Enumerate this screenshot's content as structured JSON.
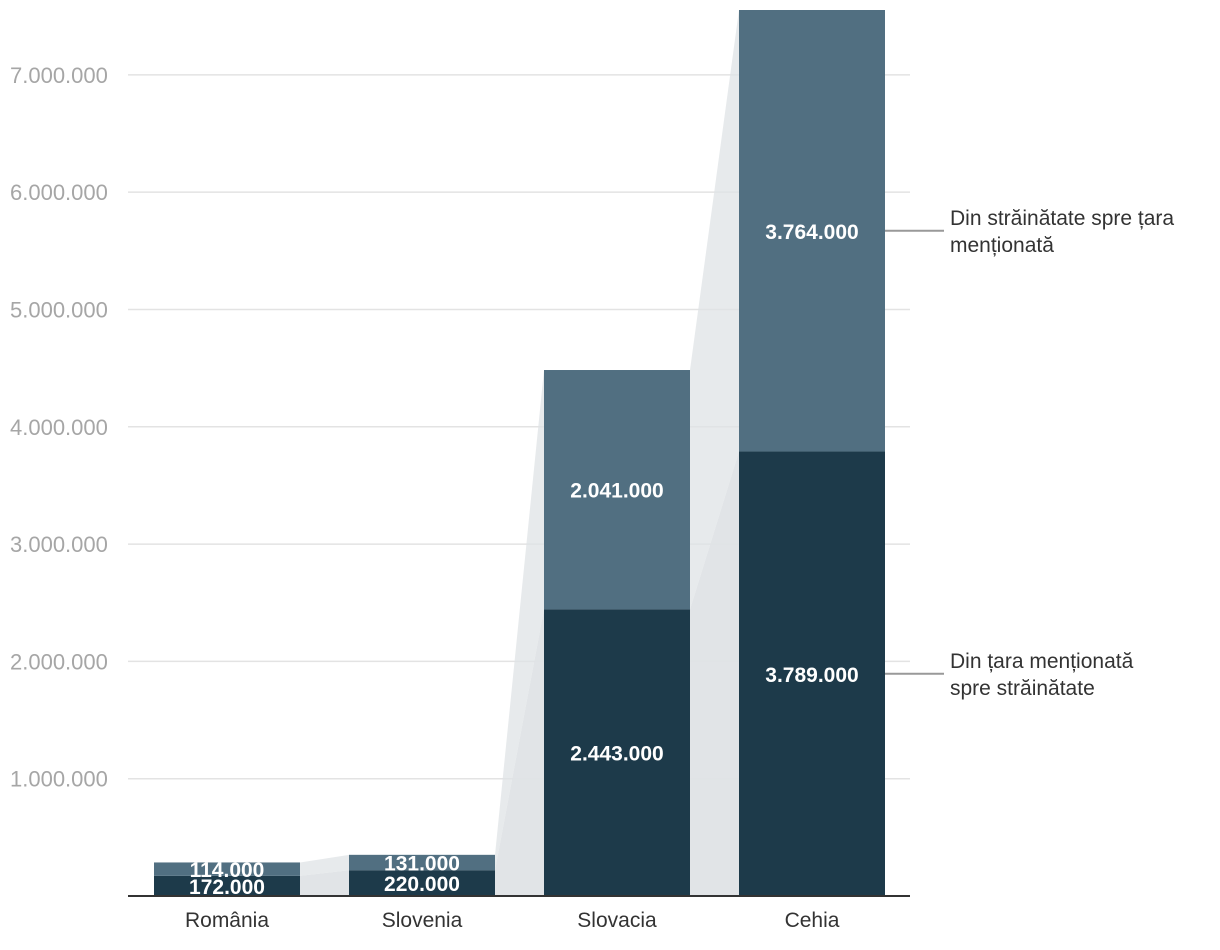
{
  "chart_data": {
    "type": "bar",
    "stacked": true,
    "categories": [
      "România",
      "Slovenia",
      "Slovacia",
      "Cehia"
    ],
    "series": [
      {
        "name": "Din țara menționată spre străinătate",
        "values": [
          172000,
          220000,
          2443000,
          3789000
        ],
        "labels": [
          "172.000",
          "220.000",
          "2.443.000",
          "3.789.000"
        ],
        "color": "#1d3a4a"
      },
      {
        "name": "Din străinătate spre țara menționată",
        "values": [
          114000,
          131000,
          2041000,
          3764000
        ],
        "labels": [
          "114.000",
          "131.000",
          "2.041.000",
          "3.764.000"
        ],
        "color": "#516f81"
      }
    ],
    "yticks": [
      1000000,
      2000000,
      3000000,
      4000000,
      5000000,
      6000000,
      7000000
    ],
    "ytick_labels": [
      "1.000.000",
      "2.000.000",
      "3.000.000",
      "4.000.000",
      "5.000.000",
      "6.000.000",
      "7.000.000"
    ],
    "ylim": [
      0,
      7553000
    ],
    "grid": true,
    "legend": "right",
    "connector_color": "#dfe3e6",
    "grid_color": "#e3e3e3",
    "axis_color": "#333333",
    "title": "",
    "xlabel": "",
    "ylabel": ""
  }
}
